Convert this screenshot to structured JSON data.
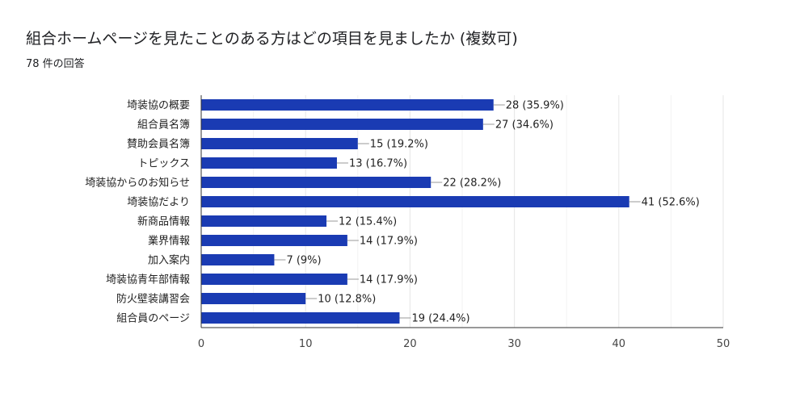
{
  "header": {
    "title": "組合ホームページを見たことのある方はどの項目を見ましたか (複数可)",
    "response_count": "78 件の回答"
  },
  "colors": {
    "bar": "#1a3bb3",
    "grid": "#e6e6e6",
    "axis": "#333333",
    "leader": "#999999"
  },
  "chart_data": {
    "type": "bar",
    "orientation": "horizontal",
    "categories": [
      "埼装協の概要",
      "組合員名簿",
      "賛助会員名簿",
      "トピックス",
      "埼装協からのお知らせ",
      "埼装協だより",
      "新商品情報",
      "業界情報",
      "加入案内",
      "埼装協青年部情報",
      "防火壁装講習会",
      "組合員のページ"
    ],
    "values": [
      28,
      27,
      15,
      13,
      22,
      41,
      12,
      14,
      7,
      14,
      10,
      19
    ],
    "data_labels": [
      "28 (35.9%)",
      "27 (34.6%)",
      "15 (19.2%)",
      "13 (16.7%)",
      "22 (28.2%)",
      "41 (52.6%)",
      "12 (15.4%)",
      "14 (17.9%)",
      "7 (9%)",
      "14 (17.9%)",
      "10 (12.8%)",
      "19 (24.4%)"
    ],
    "xlim": [
      0,
      50
    ],
    "xticks": [
      "0",
      "10",
      "20",
      "30",
      "40",
      "50"
    ],
    "grid": true
  }
}
